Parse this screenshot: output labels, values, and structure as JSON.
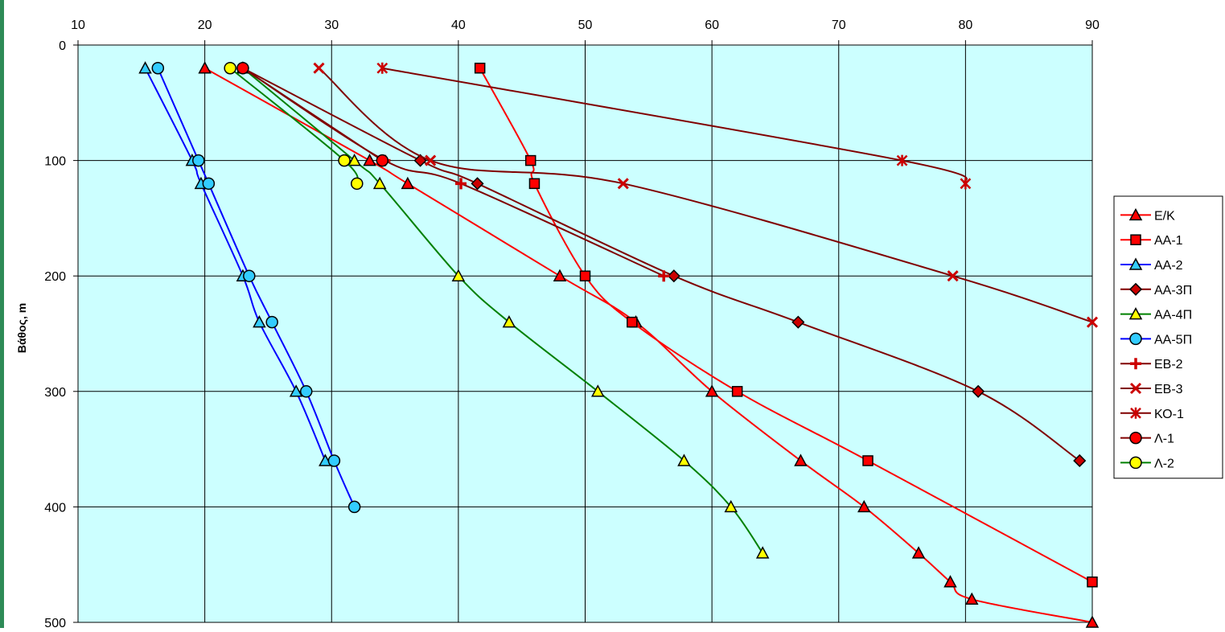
{
  "chart_data": {
    "type": "scatter",
    "ylabel": "Βάθος, m",
    "xlim": [
      10,
      90
    ],
    "ylim": [
      0,
      500
    ],
    "x_axis_position": "top",
    "y_inverted": true,
    "x_ticks": [
      "10",
      "20",
      "30",
      "40",
      "50",
      "60",
      "70",
      "80",
      "90"
    ],
    "y_ticks": [
      "0",
      "100",
      "200",
      "300",
      "400",
      "500"
    ],
    "grid": true,
    "plot_background": "#ccffff",
    "legend_position": "right",
    "series": [
      {
        "name": "Ε/Κ",
        "color": "#ff0000",
        "marker": "triangle",
        "marker_fill": "#ff0000",
        "points": [
          [
            20,
            20
          ],
          [
            33,
            100
          ],
          [
            36,
            120
          ],
          [
            48,
            200
          ],
          [
            54,
            240
          ],
          [
            60,
            300
          ],
          [
            67,
            360
          ],
          [
            72,
            400
          ],
          [
            76.3,
            440
          ],
          [
            78.8,
            465
          ],
          [
            80.5,
            480
          ],
          [
            90,
            500
          ]
        ]
      },
      {
        "name": "ΑΑ-1",
        "color": "#ff0000",
        "marker": "square",
        "marker_fill": "#ff0000",
        "points": [
          [
            41.7,
            20
          ],
          [
            45.7,
            100
          ],
          [
            46,
            120
          ],
          [
            50,
            200
          ],
          [
            53.7,
            240
          ],
          [
            62,
            300
          ],
          [
            72.3,
            360
          ],
          [
            90,
            465
          ]
        ]
      },
      {
        "name": "ΑΑ-2",
        "color": "#0000ff",
        "marker": "triangle",
        "marker_fill": "#33ccff",
        "points": [
          [
            15.3,
            20
          ],
          [
            19,
            100
          ],
          [
            19.7,
            120
          ],
          [
            23,
            200
          ],
          [
            24.3,
            240
          ],
          [
            27.2,
            300
          ],
          [
            29.5,
            360
          ]
        ]
      },
      {
        "name": "ΑΑ-3Π",
        "color": "#800000",
        "marker": "diamond",
        "marker_fill": "#cc0000",
        "points": [
          [
            23,
            20
          ],
          [
            37,
            100
          ],
          [
            41.5,
            120
          ],
          [
            57,
            200
          ],
          [
            66.8,
            240
          ],
          [
            81,
            300
          ],
          [
            89,
            360
          ]
        ]
      },
      {
        "name": "ΑΑ-4Π",
        "color": "#008000",
        "marker": "triangle",
        "marker_fill": "#ffff00",
        "points": [
          [
            23,
            20
          ],
          [
            31.8,
            100
          ],
          [
            33.8,
            120
          ],
          [
            40,
            200
          ],
          [
            44,
            240
          ],
          [
            51,
            300
          ],
          [
            57.8,
            360
          ],
          [
            61.5,
            400
          ],
          [
            64,
            440
          ]
        ]
      },
      {
        "name": "ΑΑ-5Π",
        "color": "#0000ff",
        "marker": "circle",
        "marker_fill": "#33ccff",
        "points": [
          [
            16.3,
            20
          ],
          [
            19.5,
            100
          ],
          [
            20.3,
            120
          ],
          [
            23.5,
            200
          ],
          [
            25.3,
            240
          ],
          [
            28,
            300
          ],
          [
            30.2,
            360
          ],
          [
            31.8,
            400
          ]
        ]
      },
      {
        "name": "ΕΒ-2",
        "color": "#800000",
        "marker": "plus",
        "marker_fill": "#cc0000",
        "points": [
          [
            23,
            20
          ],
          [
            34.2,
            100
          ],
          [
            40.2,
            120
          ],
          [
            56.2,
            200
          ]
        ]
      },
      {
        "name": "ΕΒ-3",
        "color": "#800000",
        "marker": "x",
        "marker_fill": "#cc0000",
        "points": [
          [
            29,
            20
          ],
          [
            37.8,
            100
          ],
          [
            53,
            120
          ],
          [
            79,
            200
          ],
          [
            90,
            240
          ]
        ]
      },
      {
        "name": "ΚΟ-1",
        "color": "#800000",
        "marker": "asterisk",
        "marker_fill": "#cc0000",
        "points": [
          [
            34,
            20
          ],
          [
            75,
            100
          ],
          [
            80,
            120
          ]
        ]
      },
      {
        "name": "Λ-1",
        "color": "#800000",
        "marker": "circle",
        "marker_fill": "#ff0000",
        "points": [
          [
            23,
            20
          ],
          [
            34,
            100
          ]
        ]
      },
      {
        "name": "Λ-2",
        "color": "#008000",
        "marker": "circle",
        "marker_fill": "#ffff00",
        "points": [
          [
            22,
            20
          ],
          [
            31,
            100
          ],
          [
            32,
            120
          ]
        ]
      }
    ]
  }
}
